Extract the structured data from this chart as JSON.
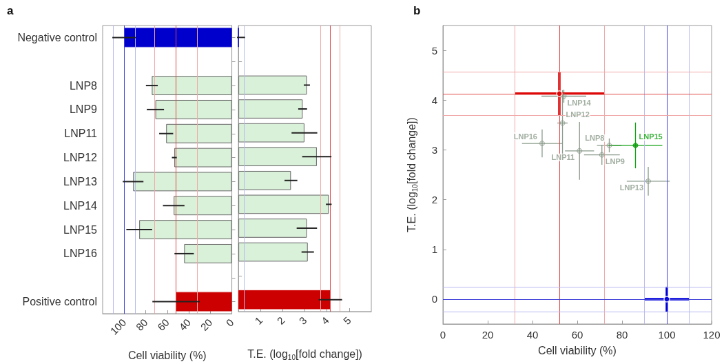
{
  "chart_data": [
    {
      "type": "bar",
      "orientation": "horizontal",
      "title": "a",
      "xlabel": "Cell viability (%)",
      "categories": [
        "Negative control",
        null,
        "LNP8",
        "LNP9",
        "LNP11",
        "LNP12",
        "LNP13",
        "LNP14",
        "LNP15",
        "LNP16",
        null,
        "Positive control"
      ],
      "values": [
        100,
        null,
        74.3,
        71,
        61,
        53.4,
        91.7,
        54,
        86,
        44.3,
        null,
        51.8
      ],
      "errors": [
        11,
        null,
        5.5,
        8,
        6.5,
        2.3,
        9.6,
        10,
        12,
        9,
        null,
        22
      ],
      "colors": [
        "#0000cc",
        null,
        "#d9f0d9",
        "#d9f0d9",
        "#d9f0d9",
        "#d9f0d9",
        "#d9f0d9",
        "#d9f0d9",
        "#d9f0d9",
        "#d9f0d9",
        null,
        "#cc0000"
      ],
      "xlim": [
        120,
        0
      ],
      "xticks": [
        100,
        80,
        60,
        40,
        20,
        0
      ],
      "ref_lines": [
        {
          "axis": "x",
          "value": 110,
          "color": "#b8b8f0"
        },
        {
          "axis": "x",
          "value": 100,
          "color": "#4040d8"
        },
        {
          "axis": "x",
          "value": 90,
          "color": "#b8b8f0"
        },
        {
          "axis": "x",
          "value": 72,
          "color": "#f0a8a8"
        },
        {
          "axis": "x",
          "value": 52,
          "color": "#e04848"
        },
        {
          "axis": "x",
          "value": 32,
          "color": "#f0a8a8"
        }
      ]
    },
    {
      "type": "bar",
      "orientation": "horizontal",
      "tick_labels": "x",
      "xlabel": "T.E. (log$_{10}$[fold change])",
      "values": [
        0,
        null,
        3.09,
        2.9,
        2.98,
        3.54,
        2.37,
        4.08,
        3.09,
        3.13,
        null,
        4.15
      ],
      "errors": [
        0.3,
        null,
        0.14,
        0.2,
        0.58,
        0.66,
        0.29,
        0.13,
        0.46,
        0.28,
        null,
        0.53
      ],
      "colors": [
        "#0000cc",
        null,
        "#d9f0d9",
        "#d9f0d9",
        "#d9f0d9",
        "#d9f0d9",
        "#d9f0d9",
        "#d9f0d9",
        "#d9f0d9",
        "#d9f0d9",
        null,
        "#cc0000"
      ],
      "xlim": [
        0,
        6
      ],
      "xticks": [
        {
          "value": 0,
          "label": null
        },
        1,
        2,
        3,
        4,
        5
      ],
      "ref_lines": [
        {
          "axis": "x",
          "value": 0.25,
          "color": "#b8b8f0"
        },
        {
          "axis": "x",
          "value": 3.7,
          "color": "#f0a8a8"
        },
        {
          "axis": "x",
          "value": 4.13,
          "color": "#e04848"
        },
        {
          "axis": "x",
          "value": 4.57,
          "color": "#f0a8a8"
        }
      ]
    },
    {
      "type": "scatter",
      "title": "b",
      "xlabel": "Cell viability (%)",
      "ylabel": "T.E. (log$_{10}$[fold change])",
      "marker": "circle",
      "xlim": [
        0,
        120
      ],
      "xticks": [
        0,
        20,
        40,
        60,
        80,
        100,
        120
      ],
      "ylim": [
        -0.5,
        5.5
      ],
      "yticks": [
        0,
        1,
        2,
        3,
        4,
        5
      ],
      "series": [
        {
          "name": "LNP8",
          "color": "#8a9a8a",
          "x": [
            74.3
          ],
          "values": [
            3.09
          ],
          "errors": [
            0.14
          ],
          "xerrors": [
            5.5
          ]
        },
        {
          "name": "LNP9",
          "color": "#8a9a8a",
          "x": [
            71
          ],
          "values": [
            2.9
          ],
          "errors": [
            0.2
          ],
          "xerrors": [
            8
          ]
        },
        {
          "name": "LNP11",
          "color": "#8a9a8a",
          "x": [
            61
          ],
          "values": [
            2.98
          ],
          "errors": [
            0.58
          ],
          "xerrors": [
            6.5
          ]
        },
        {
          "name": "LNP12",
          "color": "#8a9a8a",
          "x": [
            53.4
          ],
          "values": [
            3.54
          ],
          "errors": [
            0.66
          ],
          "xerrors": [
            2.3
          ]
        },
        {
          "name": "LNP13",
          "color": "#8a9a8a",
          "x": [
            91.7
          ],
          "values": [
            2.37
          ],
          "errors": [
            0.29
          ],
          "xerrors": [
            9.6
          ]
        },
        {
          "name": "LNP14",
          "color": "#8a9a8a",
          "x": [
            54
          ],
          "values": [
            4.08
          ],
          "errors": [
            0.13
          ],
          "xerrors": [
            10
          ]
        },
        {
          "name": "LNP15",
          "color": "#10a010",
          "x": [
            86
          ],
          "values": [
            3.09
          ],
          "errors": [
            0.46
          ],
          "xerrors": [
            12
          ]
        },
        {
          "name": "LNP16",
          "color": "#8a9a8a",
          "x": [
            44.3
          ],
          "values": [
            3.13
          ],
          "errors": [
            0.28
          ],
          "xerrors": [
            9
          ]
        },
        {
          "color": "#dd0000",
          "x": [
            52
          ],
          "values": [
            4.13
          ],
          "errors": [
            0.44
          ],
          "xerrors": [
            20
          ]
        },
        {
          "color": "#0000dd",
          "x": [
            100
          ],
          "values": [
            0
          ],
          "errors": [
            0.25
          ],
          "xerrors": [
            10
          ]
        }
      ],
      "ref_lines": [
        {
          "axis": "x",
          "value": 32,
          "color": "#f0a8a8"
        },
        {
          "axis": "x",
          "value": 52,
          "color": "#e04848"
        },
        {
          "axis": "x",
          "value": 72,
          "color": "#f0a8a8"
        },
        {
          "axis": "x",
          "value": 90,
          "color": "#b8b8f0"
        },
        {
          "axis": "x",
          "value": 100,
          "color": "#4040d8"
        },
        {
          "axis": "x",
          "value": 110,
          "color": "#b8b8f0"
        },
        {
          "axis": "y",
          "value": 3.7,
          "color": "#f0a8a8"
        },
        {
          "axis": "y",
          "value": 4.13,
          "color": "#e04848"
        },
        {
          "axis": "y",
          "value": 4.57,
          "color": "#f0a8a8"
        },
        {
          "axis": "y",
          "value": -0.25,
          "color": "#b8b8f0"
        },
        {
          "axis": "y",
          "value": 0,
          "color": "#4040d8"
        },
        {
          "axis": "y",
          "value": 0.25,
          "color": "#b8b8f0"
        }
      ]
    }
  ]
}
